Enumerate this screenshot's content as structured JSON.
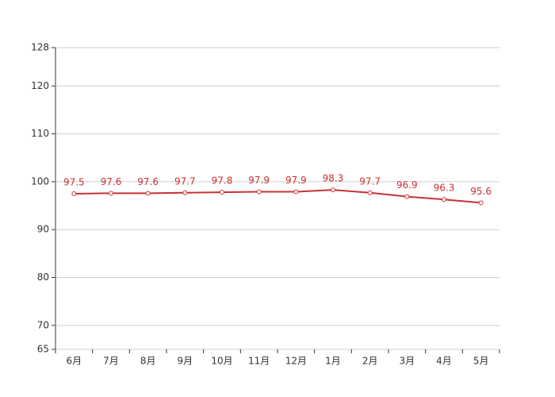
{
  "chart_data": {
    "type": "line",
    "categories": [
      "6月",
      "7月",
      "8月",
      "9月",
      "10月",
      "11月",
      "12月",
      "1月",
      "2月",
      "3月",
      "4月",
      "5月"
    ],
    "values": [
      97.5,
      97.6,
      97.6,
      97.7,
      97.8,
      97.9,
      97.9,
      98.3,
      97.7,
      96.9,
      96.3,
      95.6
    ],
    "color": "#c83232",
    "ylim": [
      65,
      128
    ],
    "yticks": [
      65,
      70,
      80,
      90,
      100,
      110,
      120,
      128
    ],
    "grid": true
  }
}
